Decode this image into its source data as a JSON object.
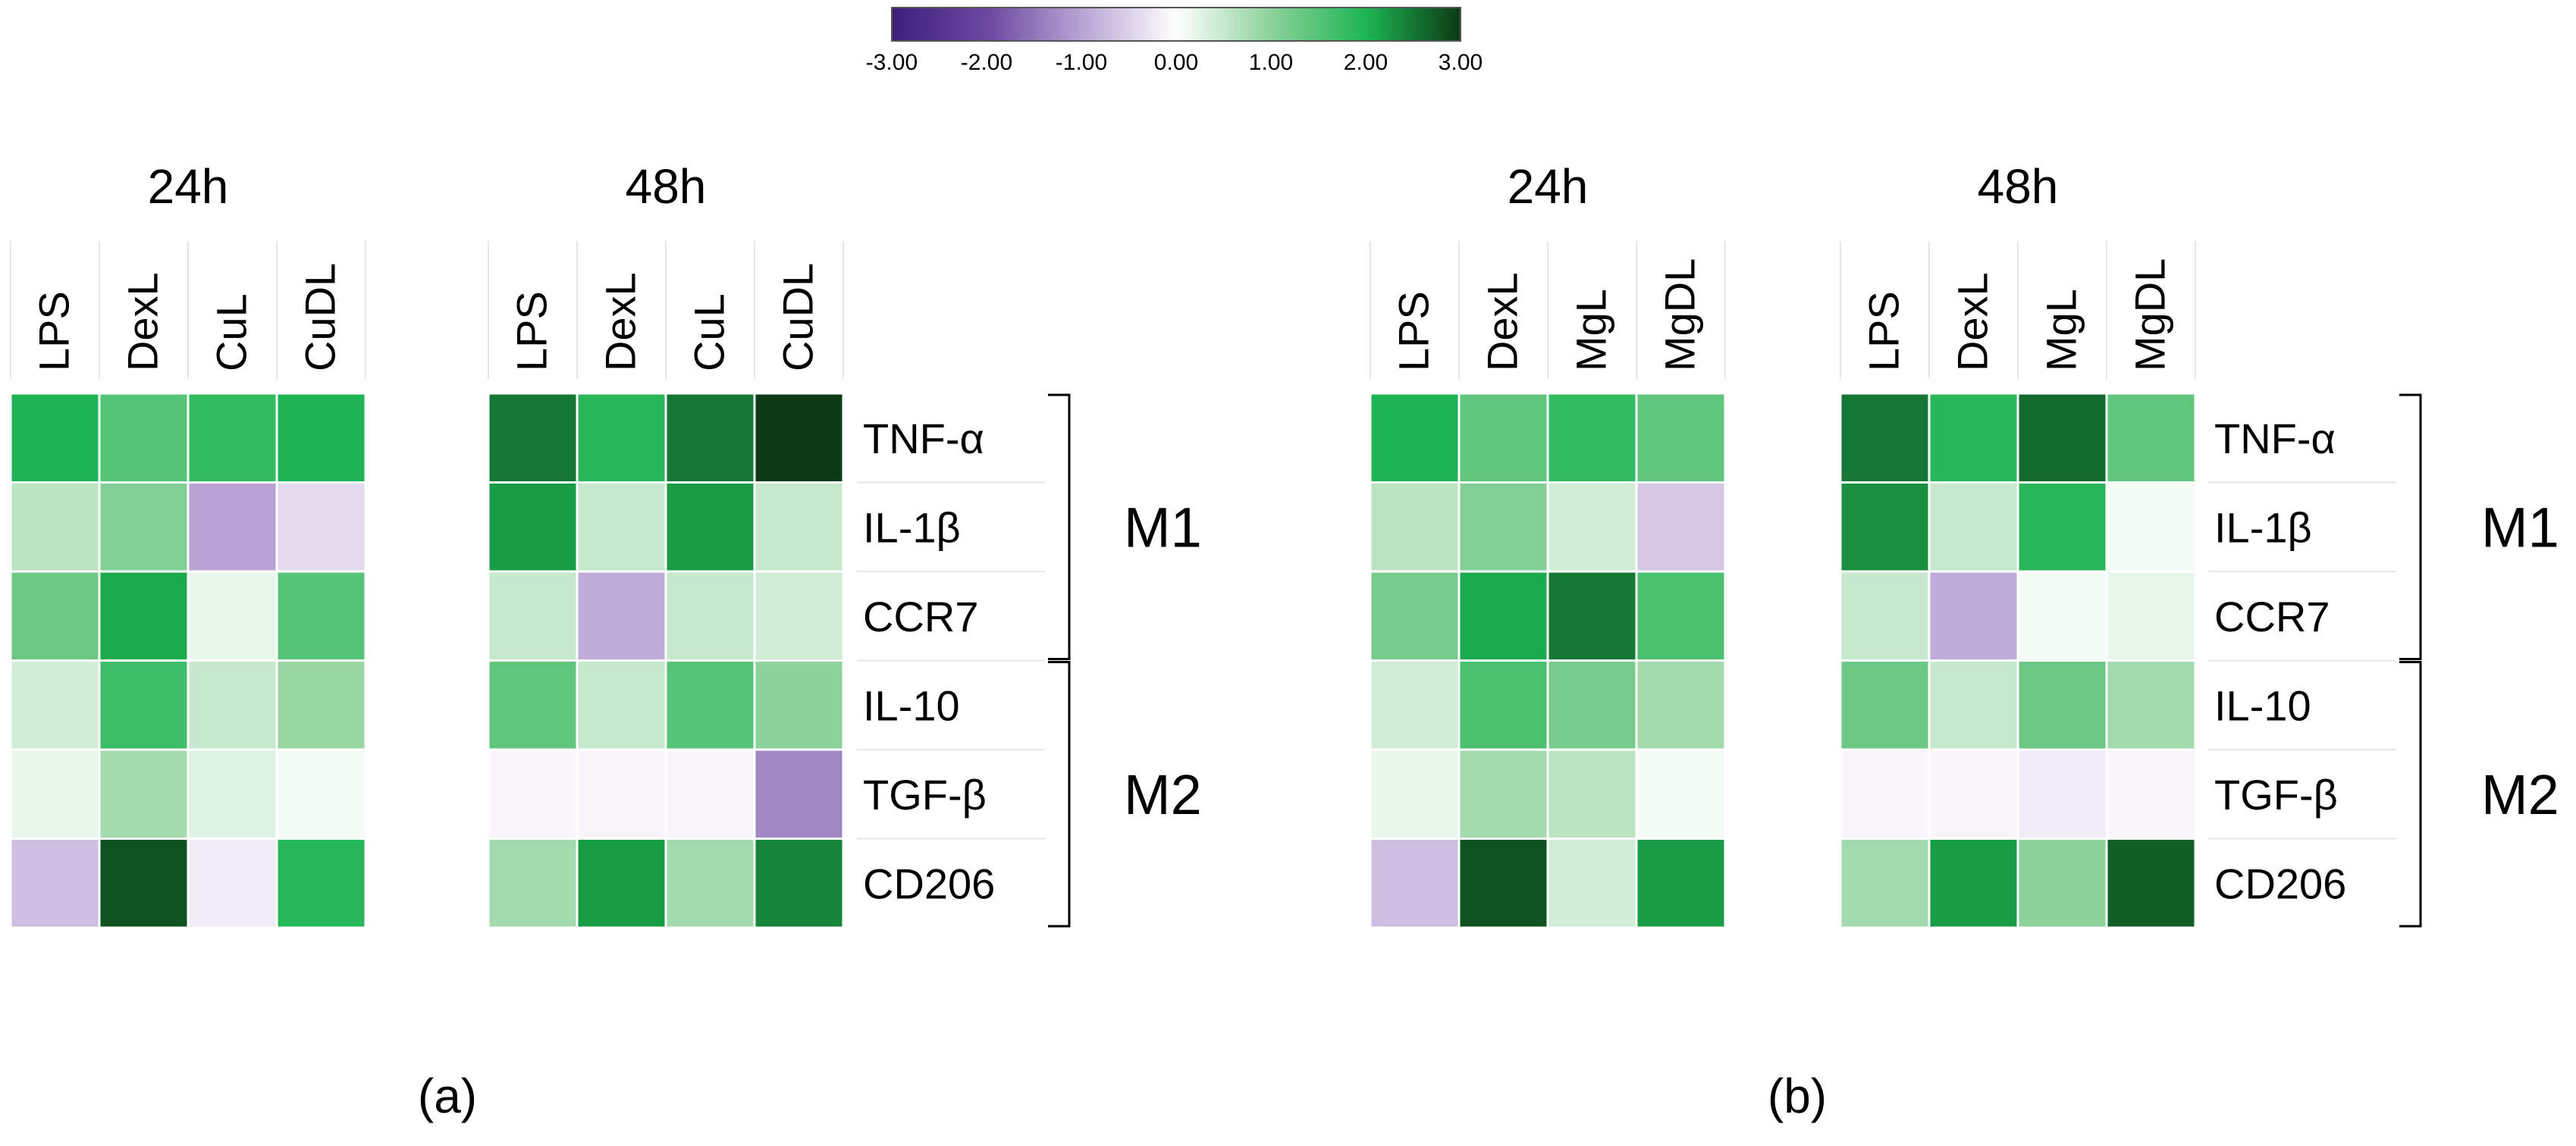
{
  "legend": {
    "ticks": [
      "-3.00",
      "-2.00",
      "-1.00",
      "0.00",
      "1.00",
      "2.00",
      "3.00"
    ],
    "colors": {
      "min": "#3d1f7a",
      "mid": "#ffffff",
      "max": "#0b3a14"
    }
  },
  "chart_data": [
    {
      "type": "heatmap",
      "panel_label": "(a)",
      "rows": [
        "TNF-α",
        "IL-1β",
        "CCR7",
        "IL-10",
        "TGF-β",
        "CD206"
      ],
      "groups": [
        {
          "name": "M1",
          "rows": [
            "TNF-α",
            "IL-1β",
            "CCR7"
          ]
        },
        {
          "name": "M2",
          "rows": [
            "IL-10",
            "TGF-β",
            "CD206"
          ]
        }
      ],
      "blocks": [
        {
          "title": "24h",
          "columns": [
            "LPS",
            "DexL",
            "CuL",
            "CuDL"
          ],
          "values": [
            [
              2.0,
              1.5,
              1.8,
              2.0
            ],
            [
              0.6,
              1.1,
              -1.0,
              -0.4
            ],
            [
              1.3,
              2.1,
              0.2,
              1.5
            ],
            [
              0.4,
              1.7,
              0.5,
              0.9
            ],
            [
              0.2,
              0.8,
              0.3,
              0.1
            ],
            [
              -0.7,
              2.8,
              -0.2,
              1.9
            ]
          ]
        },
        {
          "title": "48h",
          "columns": [
            "LPS",
            "DexL",
            "CuL",
            "CuDL"
          ],
          "values": [
            [
              2.5,
              1.9,
              2.5,
              3.0
            ],
            [
              2.2,
              0.5,
              2.2,
              0.5
            ],
            [
              0.5,
              -0.9,
              0.5,
              0.4
            ],
            [
              1.4,
              0.5,
              1.5,
              1.0
            ],
            [
              -0.1,
              -0.1,
              -0.1,
              -1.3
            ],
            [
              0.8,
              2.2,
              0.8,
              2.4
            ]
          ]
        }
      ]
    },
    {
      "type": "heatmap",
      "panel_label": "(b)",
      "rows": [
        "TNF-α",
        "IL-1β",
        "CCR7",
        "IL-10",
        "TGF-β",
        "CD206"
      ],
      "groups": [
        {
          "name": "M1",
          "rows": [
            "TNF-α",
            "IL-1β",
            "CCR7"
          ]
        },
        {
          "name": "M2",
          "rows": [
            "IL-10",
            "TGF-β",
            "CD206"
          ]
        }
      ],
      "blocks": [
        {
          "title": "24h",
          "columns": [
            "LPS",
            "DexL",
            "MgL",
            "MgDL"
          ],
          "values": [
            [
              2.0,
              1.4,
              1.8,
              1.4
            ],
            [
              0.6,
              1.1,
              0.4,
              -0.6
            ],
            [
              1.2,
              2.1,
              2.5,
              1.6
            ],
            [
              0.4,
              1.6,
              1.2,
              0.8
            ],
            [
              0.2,
              0.8,
              0.6,
              0.1
            ],
            [
              -0.7,
              2.8,
              0.4,
              2.2
            ]
          ]
        },
        {
          "title": "48h",
          "columns": [
            "LPS",
            "DexL",
            "MgL",
            "MgDL"
          ],
          "values": [
            [
              2.5,
              1.9,
              2.6,
              1.4
            ],
            [
              2.3,
              0.5,
              1.9,
              0.1
            ],
            [
              0.5,
              -0.9,
              0.1,
              0.2
            ],
            [
              1.3,
              0.5,
              1.3,
              0.8
            ],
            [
              -0.1,
              -0.1,
              -0.2,
              -0.1
            ],
            [
              0.8,
              2.2,
              1.0,
              2.7
            ]
          ]
        }
      ]
    }
  ]
}
